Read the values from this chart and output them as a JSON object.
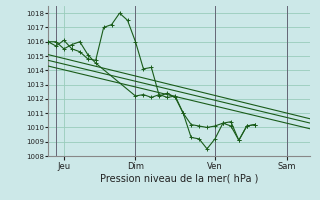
{
  "background_color": "#cce8e8",
  "grid_color": "#99ccbb",
  "line_color": "#1a5c1a",
  "xlabel": "Pression niveau de la mer( hPa )",
  "ylim": [
    1008,
    1018.5
  ],
  "yticks": [
    1008,
    1009,
    1010,
    1011,
    1012,
    1013,
    1014,
    1015,
    1016,
    1017,
    1018
  ],
  "xlim": [
    0,
    16.5
  ],
  "xtick_labels": [
    "Jeu",
    "Dim",
    "Ven",
    "Sam"
  ],
  "xtick_positions": [
    1.0,
    5.5,
    10.5,
    15.0
  ],
  "vlines": [
    0.5,
    5.5,
    10.5,
    15.0
  ],
  "series1_x": [
    0.0,
    0.5,
    1.0,
    1.5,
    2.0,
    2.5,
    3.0,
    3.5,
    4.0,
    4.5,
    5.0,
    5.5,
    6.0,
    6.5,
    7.0,
    7.5,
    8.0,
    8.5,
    9.0,
    9.5,
    10.0,
    10.5,
    11.0,
    11.5,
    12.0,
    12.5,
    13.0
  ],
  "series1_y": [
    1016.0,
    1015.7,
    1016.1,
    1015.5,
    1015.3,
    1014.8,
    1014.7,
    1017.0,
    1017.2,
    1018.0,
    1017.5,
    1016.0,
    1014.1,
    1014.2,
    1012.2,
    1012.4,
    1012.1,
    1011.0,
    1009.3,
    1009.2,
    1008.5,
    1009.2,
    1010.3,
    1010.4,
    1009.1,
    1010.1,
    1010.2
  ],
  "series2_x": [
    0.0,
    0.5,
    1.0,
    1.5,
    2.0,
    2.5,
    3.0,
    5.5,
    6.0,
    6.5,
    7.0,
    7.5,
    8.0,
    8.5,
    9.0,
    9.5,
    10.0,
    10.5,
    11.0,
    11.5,
    12.0,
    12.5,
    13.0
  ],
  "series2_y": [
    1016.0,
    1016.0,
    1015.5,
    1015.8,
    1016.0,
    1015.1,
    1014.5,
    1012.2,
    1012.3,
    1012.1,
    1012.3,
    1012.1,
    1012.2,
    1011.0,
    1010.2,
    1010.1,
    1010.0,
    1010.1,
    1010.3,
    1010.1,
    1009.1,
    1010.1,
    1010.2
  ],
  "trend1_x": [
    0.0,
    16.5
  ],
  "trend1_y": [
    1015.1,
    1010.6
  ],
  "trend2_x": [
    0.0,
    16.5
  ],
  "trend2_y": [
    1014.7,
    1010.3
  ],
  "trend3_x": [
    0.0,
    16.5
  ],
  "trend3_y": [
    1014.3,
    1009.9
  ]
}
